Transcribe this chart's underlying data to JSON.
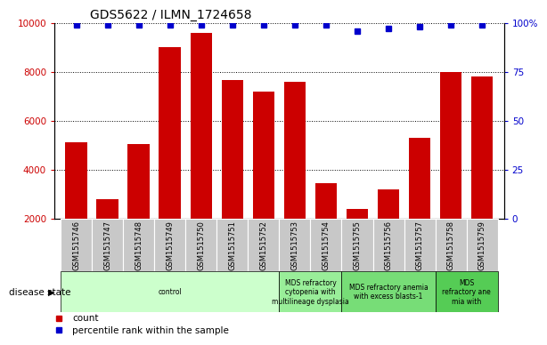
{
  "title": "GDS5622 / ILMN_1724658",
  "samples": [
    "GSM1515746",
    "GSM1515747",
    "GSM1515748",
    "GSM1515749",
    "GSM1515750",
    "GSM1515751",
    "GSM1515752",
    "GSM1515753",
    "GSM1515754",
    "GSM1515755",
    "GSM1515756",
    "GSM1515757",
    "GSM1515758",
    "GSM1515759"
  ],
  "counts": [
    5100,
    2800,
    5050,
    9000,
    9600,
    7650,
    7200,
    7600,
    3450,
    2400,
    3200,
    5300,
    8000,
    7800
  ],
  "percentiles": [
    99,
    99,
    99,
    99,
    99,
    99,
    99,
    99,
    99,
    96,
    97,
    98,
    99,
    99
  ],
  "ylim_left": [
    2000,
    10000
  ],
  "ylim_right": [
    0,
    100
  ],
  "yticks_left": [
    2000,
    4000,
    6000,
    8000,
    10000
  ],
  "yticks_right": [
    0,
    25,
    50,
    75,
    100
  ],
  "bar_color": "#cc0000",
  "dot_color": "#0000cc",
  "tick_area_color": "#c8c8c8",
  "disease_groups": [
    {
      "label": "control",
      "start": 0,
      "end": 7,
      "color": "#ccffcc"
    },
    {
      "label": "MDS refractory\ncytopenia with\nmultilineage dysplasia",
      "start": 7,
      "end": 9,
      "color": "#99ee99"
    },
    {
      "label": "MDS refractory anemia\nwith excess blasts-1",
      "start": 9,
      "end": 12,
      "color": "#77dd77"
    },
    {
      "label": "MDS\nrefractory ane\nmia with",
      "start": 12,
      "end": 14,
      "color": "#55cc55"
    }
  ],
  "legend_items": [
    {
      "label": "count",
      "color": "#cc0000"
    },
    {
      "label": "percentile rank within the sample",
      "color": "#0000cc"
    }
  ],
  "disease_label": "disease state"
}
